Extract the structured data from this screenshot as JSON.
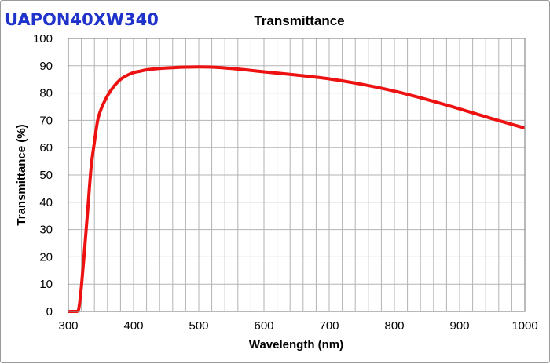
{
  "product_name": "UAPON40XW340",
  "colors": {
    "product_name": "#1f32c9",
    "series_line": "#ee1111",
    "grid": "#b3b3b3",
    "plot_border": "#8a8a8a"
  },
  "chart_data": {
    "type": "line",
    "title": "Transmittance",
    "xlabel": "Wavelength (nm)",
    "ylabel": "Transmittance (%)",
    "xlim": [
      300,
      1000
    ],
    "ylim": [
      0,
      100
    ],
    "x_ticks": [
      300,
      400,
      500,
      600,
      700,
      800,
      900,
      1000
    ],
    "y_ticks": [
      0,
      10,
      20,
      30,
      40,
      50,
      60,
      70,
      80,
      90,
      100
    ],
    "x_ticks_text": [
      "300",
      "400",
      "500",
      "600",
      "700",
      "800",
      "900",
      "1000"
    ],
    "y_ticks_text": [
      "0",
      "10",
      "20",
      "30",
      "40",
      "50",
      "60",
      "70",
      "80",
      "90",
      "100"
    ],
    "x_minor_step": 20,
    "y_minor_step": 10,
    "grid": true,
    "legend": false,
    "series": [
      {
        "x": [
          300,
          313,
          316,
          320,
          325,
          330,
          335,
          340,
          345,
          350,
          360,
          370,
          380,
          390,
          400,
          410,
          420,
          440,
          460,
          480,
          500,
          520,
          540,
          560,
          580,
          600,
          650,
          700,
          750,
          800,
          850,
          900,
          950,
          1000
        ],
        "y": [
          0,
          0,
          1,
          9,
          23,
          38,
          53,
          62,
          70,
          74,
          79,
          82.5,
          85,
          86.5,
          87.5,
          88,
          88.5,
          89,
          89.3,
          89.5,
          89.6,
          89.5,
          89.2,
          88.8,
          88.3,
          87.8,
          86.6,
          85.2,
          83.2,
          80.7,
          77.6,
          74.2,
          70.6,
          67.2
        ]
      }
    ]
  }
}
